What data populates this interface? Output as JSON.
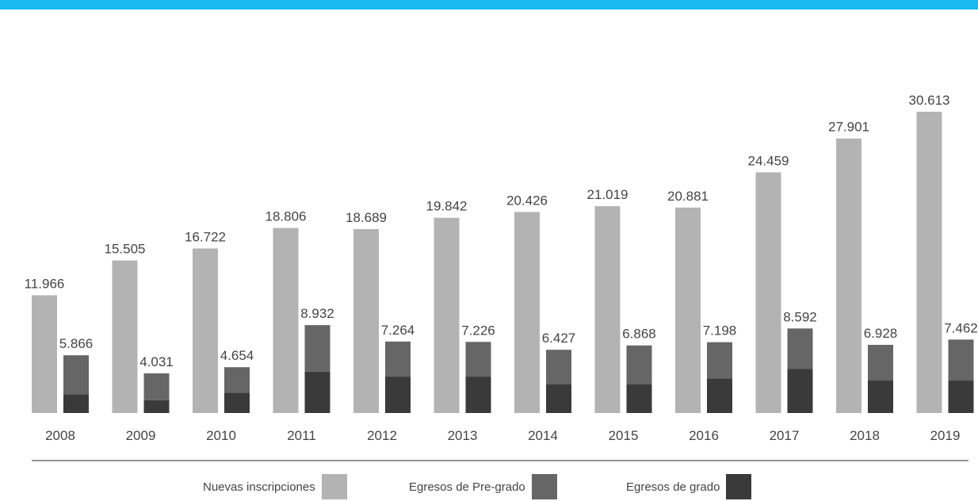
{
  "colors": {
    "top_band": "#1ab9ef",
    "nuevas": "#b3b3b3",
    "egresos_pregrado": "#666666",
    "egresos_grado": "#3a3a3a",
    "axis_line": "#555555",
    "text": "#444444"
  },
  "chart_data": {
    "type": "bar",
    "categories": [
      "2008",
      "2009",
      "2010",
      "2011",
      "2012",
      "2013",
      "2014",
      "2015",
      "2016",
      "2017",
      "2018",
      "2019"
    ],
    "series": [
      {
        "name": "Nuevas inscripciones",
        "values": [
          11966,
          15505,
          16722,
          18806,
          18689,
          19842,
          20426,
          21019,
          20881,
          24459,
          27901,
          30613
        ],
        "labels": [
          "11.966",
          "15.505",
          "16.722",
          "18.806",
          "18.689",
          "19.842",
          "20.426",
          "21.019",
          "20.881",
          "24.459",
          "27.901",
          "30.613"
        ]
      },
      {
        "name": "Egresos de Pre-grado",
        "stack": "egresos",
        "values": [
          3966,
          2731,
          2604,
          4732,
          3564,
          3526,
          3527,
          3968,
          3698,
          4092,
          3628,
          4162
        ]
      },
      {
        "name": "Egresos de grado",
        "stack": "egresos",
        "values": [
          1900,
          1300,
          2050,
          4200,
          3700,
          3700,
          2900,
          2900,
          3500,
          4500,
          3300,
          3300
        ]
      }
    ],
    "stack_totals": [
      5866,
      4031,
      4654,
      8932,
      7264,
      7226,
      6427,
      6868,
      7198,
      8592,
      6928,
      7462
    ],
    "stack_total_labels": [
      "5.866",
      "4.031",
      "4.654",
      "8.932",
      "7.264",
      "7.226",
      "6.427",
      "6.868",
      "7.198",
      "8.592",
      "6.928",
      "7.462"
    ],
    "ylim": [
      0,
      31000
    ],
    "grid": false,
    "legend_position": "bottom-center"
  },
  "legend": {
    "items": [
      {
        "label": "Nuevas inscripciones",
        "color": "#b3b3b3"
      },
      {
        "label": "Egresos de Pre-grado",
        "color": "#666666"
      },
      {
        "label": "Egresos de grado",
        "color": "#3a3a3a"
      }
    ]
  }
}
